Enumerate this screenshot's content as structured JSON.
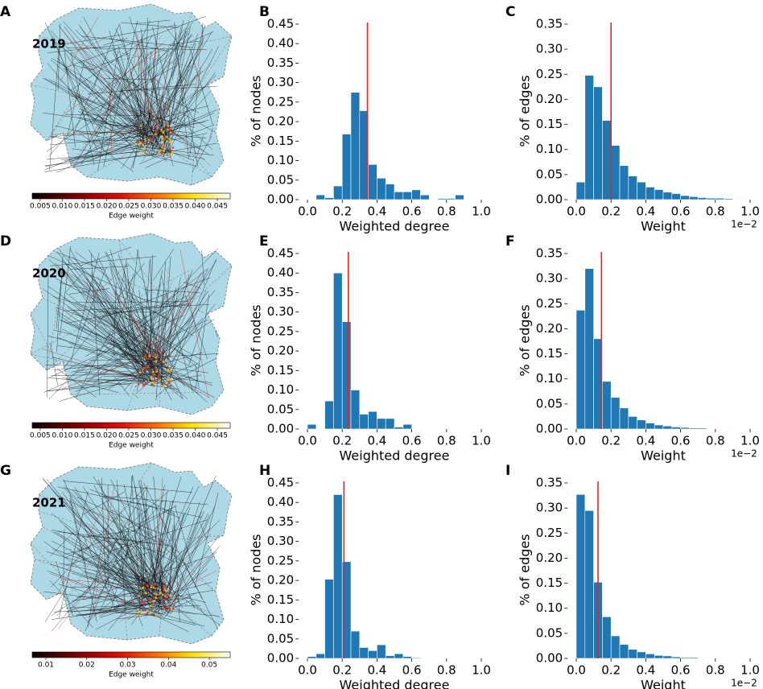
{
  "chart_data": [
    {
      "type": "map",
      "panel": "A",
      "title": "2019",
      "xlabel": "Edge weight",
      "xlim": [
        0.0032,
        0.0479
      ],
      "xticks": [
        0.005,
        {
          "value": 0.01,
          "label": "0.010"
        },
        0.015,
        {
          "value": 0.02,
          "label": "0.020"
        },
        0.025,
        {
          "value": 0.03,
          "label": "0.030"
        },
        0.035,
        {
          "value": 0.04,
          "label": "0.040"
        },
        0.045
      ]
    },
    {
      "type": "histogram",
      "panel": "B",
      "xlabel": "Weighted degree",
      "ylabel": "% of nodes",
      "color": "#1f77b4",
      "vline": 0.345,
      "vline_color": "#e8261f",
      "bins": [
        0,
        0.05,
        0.1,
        0.15,
        0.2,
        0.25,
        0.3,
        0.35,
        0.4,
        0.45,
        0.5,
        0.55,
        0.6,
        0.65,
        0.7,
        0.75,
        0.8,
        0.85,
        0.9
      ],
      "values": [
        0,
        0.012,
        0.005,
        0.035,
        0.168,
        0.275,
        0.228,
        0.09,
        0.055,
        0.04,
        0.02,
        0.02,
        0.025,
        0.012,
        0,
        0.003,
        0.003,
        0.012
      ],
      "xlim": [
        -0.05,
        1.05
      ],
      "xticks": [
        {
          "value": 0,
          "label": "0.0"
        },
        0.2,
        0.4,
        0.6,
        0.8,
        {
          "value": 1,
          "label": "1.0"
        }
      ],
      "ylim": [
        0,
        0.454
      ],
      "yticks": [
        {
          "value": 0,
          "label": "0.00"
        },
        0.05,
        {
          "value": 0.1,
          "label": "0.10"
        },
        0.15,
        {
          "value": 0.2,
          "label": "0.20"
        },
        0.25,
        {
          "value": 0.3,
          "label": "0.30"
        },
        0.35,
        {
          "value": 0.4,
          "label": "0.40"
        },
        0.45
      ]
    },
    {
      "type": "histogram",
      "panel": "C",
      "xlabel": "Weight",
      "ylabel": "% of edges",
      "x_offset_label": "1e−2",
      "color": "#1f77b4",
      "vline": 0.2,
      "vline_color": "#e8261f",
      "bins": [
        0,
        0.05,
        0.1,
        0.15,
        0.2,
        0.25,
        0.3,
        0.35,
        0.4,
        0.45,
        0.5,
        0.55,
        0.6,
        0.65,
        0.7,
        0.75,
        0.8,
        0.85,
        0.9,
        0.95,
        1.0
      ],
      "values": [
        0.035,
        0.248,
        0.225,
        0.158,
        0.108,
        0.068,
        0.047,
        0.035,
        0.025,
        0.02,
        0.015,
        0.012,
        0.008,
        0.006,
        0.004,
        0.003,
        0.003,
        0.002,
        0.001,
        0.001
      ],
      "xlim": [
        -0.05,
        1.05
      ],
      "xticks": [
        {
          "value": 0,
          "label": "0.0"
        },
        0.2,
        0.4,
        0.6,
        0.8,
        {
          "value": 1,
          "label": "1.0"
        }
      ],
      "ylim": [
        0,
        0.3532
      ],
      "yticks": [
        {
          "value": 0,
          "label": "0.00"
        },
        0.05,
        {
          "value": 0.1,
          "label": "0.10"
        },
        0.15,
        {
          "value": 0.2,
          "label": "0.20"
        },
        0.25,
        {
          "value": 0.3,
          "label": "0.30"
        },
        0.35
      ]
    },
    {
      "type": "map",
      "panel": "D",
      "title": "2020",
      "xlabel": "Edge weight",
      "xlim": [
        0.0032,
        0.0479
      ],
      "xticks": [
        0.005,
        {
          "value": 0.01,
          "label": "0.010"
        },
        0.015,
        {
          "value": 0.02,
          "label": "0.020"
        },
        0.025,
        {
          "value": 0.03,
          "label": "0.030"
        },
        0.035,
        {
          "value": 0.04,
          "label": "0.040"
        },
        0.045
      ]
    },
    {
      "type": "histogram",
      "panel": "E",
      "xlabel": "Weighted degree",
      "ylabel": "% of nodes",
      "color": "#1f77b4",
      "vline": 0.235,
      "vline_color": "#e8261f",
      "bins": [
        0,
        0.05,
        0.1,
        0.15,
        0.2,
        0.25,
        0.3,
        0.35,
        0.4,
        0.45,
        0.5,
        0.55,
        0.6
      ],
      "values": [
        0.012,
        0,
        0.072,
        0.4,
        0.275,
        0.1,
        0.038,
        0.045,
        0.027,
        0.027,
        0.005,
        0.012
      ],
      "xlim": [
        -0.05,
        1.05
      ],
      "xticks": [
        {
          "value": 0,
          "label": "0.0"
        },
        0.2,
        0.4,
        0.6,
        0.8,
        {
          "value": 1,
          "label": "1.0"
        }
      ],
      "ylim": [
        0,
        0.454
      ],
      "yticks": [
        {
          "value": 0,
          "label": "0.00"
        },
        0.05,
        {
          "value": 0.1,
          "label": "0.10"
        },
        0.15,
        {
          "value": 0.2,
          "label": "0.20"
        },
        0.25,
        {
          "value": 0.3,
          "label": "0.30"
        },
        0.35,
        {
          "value": 0.4,
          "label": "0.40"
        },
        0.45
      ]
    },
    {
      "type": "histogram",
      "panel": "F",
      "xlabel": "Weight",
      "ylabel": "% of edges",
      "x_offset_label": "1e−2",
      "color": "#1f77b4",
      "vline": 0.145,
      "vline_color": "#e8261f",
      "bins": [
        0,
        0.05,
        0.1,
        0.15,
        0.2,
        0.25,
        0.3,
        0.35,
        0.4,
        0.45,
        0.5,
        0.55,
        0.6,
        0.65,
        0.7,
        0.75,
        0.8,
        0.85,
        0.9,
        0.95,
        1.0
      ],
      "values": [
        0.237,
        0.32,
        0.18,
        0.095,
        0.063,
        0.042,
        0.025,
        0.018,
        0.012,
        0.008,
        0.006,
        0.004,
        0.003,
        0.002,
        0.002,
        0.001,
        0.001,
        0.001,
        0.0005,
        0.0005
      ],
      "xlim": [
        -0.05,
        1.05
      ],
      "xticks": [
        {
          "value": 0,
          "label": "0.0"
        },
        0.2,
        0.4,
        0.6,
        0.8,
        {
          "value": 1,
          "label": "1.0"
        }
      ],
      "ylim": [
        0,
        0.3532
      ],
      "yticks": [
        {
          "value": 0,
          "label": "0.00"
        },
        0.05,
        {
          "value": 0.1,
          "label": "0.10"
        },
        0.15,
        {
          "value": 0.2,
          "label": "0.20"
        },
        0.25,
        {
          "value": 0.3,
          "label": "0.30"
        },
        0.35
      ]
    },
    {
      "type": "map",
      "panel": "G",
      "title": "2021",
      "xlabel": "Edge weight",
      "xlim": [
        0.00665,
        0.0551
      ],
      "xticks": [
        0.01,
        0.02,
        0.03,
        0.04,
        0.05
      ]
    },
    {
      "type": "histogram",
      "panel": "H",
      "xlabel": "Weighted degree",
      "ylabel": "% of nodes",
      "color": "#1f77b4",
      "vline": 0.21,
      "vline_color": "#e8261f",
      "bins": [
        0,
        0.05,
        0.1,
        0.15,
        0.2,
        0.25,
        0.3,
        0.35,
        0.4,
        0.45,
        0.5,
        0.55,
        0.6,
        0.65
      ],
      "values": [
        0.005,
        0.012,
        0.203,
        0.42,
        0.248,
        0.07,
        0.028,
        0.02,
        0.035,
        0.007,
        0.012,
        0.005,
        0.002
      ],
      "xlim": [
        -0.05,
        1.05
      ],
      "xticks": [
        {
          "value": 0,
          "label": "0.0"
        },
        0.2,
        0.4,
        0.6,
        0.8,
        {
          "value": 1,
          "label": "1.0"
        }
      ],
      "ylim": [
        0,
        0.454
      ],
      "yticks": [
        {
          "value": 0,
          "label": "0.00"
        },
        0.05,
        {
          "value": 0.1,
          "label": "0.10"
        },
        0.15,
        {
          "value": 0.2,
          "label": "0.20"
        },
        0.25,
        {
          "value": 0.3,
          "label": "0.30"
        },
        0.35,
        {
          "value": 0.4,
          "label": "0.40"
        },
        0.45
      ]
    },
    {
      "type": "histogram",
      "panel": "I",
      "xlabel": "Weight",
      "ylabel": "% of edges",
      "x_offset_label": "1e−2",
      "color": "#1f77b4",
      "vline": 0.125,
      "vline_color": "#e8261f",
      "bins": [
        0,
        0.05,
        0.1,
        0.15,
        0.2,
        0.25,
        0.3,
        0.35,
        0.4,
        0.45,
        0.5,
        0.55,
        0.6,
        0.65,
        0.7,
        0.75,
        0.8,
        0.85,
        0.9,
        0.95,
        1.0
      ],
      "values": [
        0.327,
        0.295,
        0.152,
        0.083,
        0.045,
        0.028,
        0.018,
        0.013,
        0.009,
        0.006,
        0.005,
        0.003,
        0.002,
        0.002,
        0.001,
        0.001,
        0.001,
        0.0005,
        0.0005,
        0.0005
      ],
      "xlim": [
        -0.05,
        1.05
      ],
      "xticks": [
        {
          "value": 0,
          "label": "0.0"
        },
        0.2,
        0.4,
        0.6,
        0.8,
        {
          "value": 1,
          "label": "1.0"
        }
      ],
      "ylim": [
        0,
        0.3532
      ],
      "yticks": [
        {
          "value": 0,
          "label": "0.00"
        },
        0.05,
        {
          "value": 0.1,
          "label": "0.10"
        },
        0.15,
        {
          "value": 0.2,
          "label": "0.20"
        },
        0.25,
        {
          "value": 0.3,
          "label": "0.30"
        },
        0.35
      ]
    }
  ]
}
